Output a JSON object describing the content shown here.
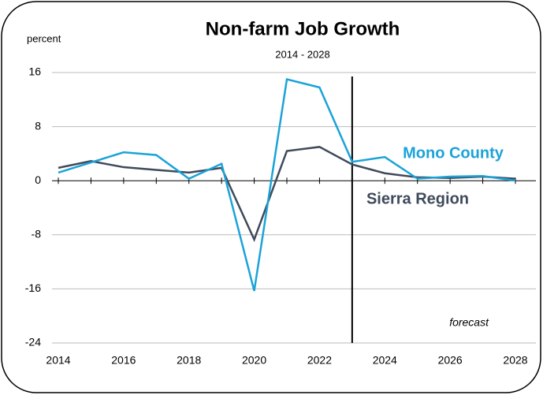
{
  "chart_data": {
    "type": "line",
    "title": "Non-farm Job Growth",
    "subtitle": "2014 - 2028",
    "y_label": "percent",
    "annotation": "forecast",
    "forecast_x": 2023,
    "x": [
      2014,
      2015,
      2016,
      2017,
      2018,
      2019,
      2020,
      2021,
      2022,
      2023,
      2024,
      2025,
      2026,
      2027,
      2028
    ],
    "series": [
      {
        "name": "Mono County",
        "color": "#1ba3d8",
        "values": [
          1.2,
          2.7,
          4.2,
          3.8,
          0.3,
          2.5,
          -16.3,
          15,
          13.8,
          2.8,
          3.5,
          0.3,
          0.6,
          0.7,
          0
        ]
      },
      {
        "name": "Sierra Region",
        "color": "#3f4a5a",
        "values": [
          1.9,
          2.9,
          2.0,
          1.6,
          1.2,
          1.9,
          -8.7,
          4.4,
          5.0,
          2.4,
          1.1,
          0.5,
          0.4,
          0.6,
          0.3
        ]
      }
    ],
    "xlim": [
      2014,
      2028
    ],
    "xticks": [
      2014,
      2016,
      2018,
      2020,
      2022,
      2024,
      2026,
      2028
    ],
    "ylim": [
      -24,
      16
    ],
    "yticks": [
      -24,
      -16,
      -8,
      0,
      8,
      16
    ],
    "grid": true
  }
}
